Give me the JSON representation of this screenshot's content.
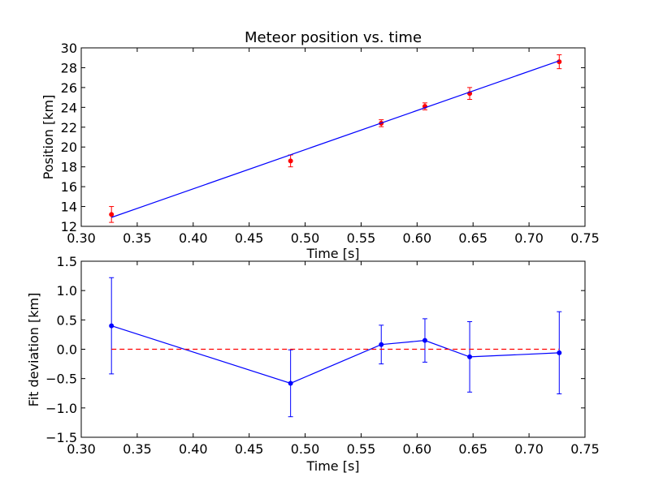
{
  "chart_data": [
    {
      "type": "scatter",
      "title": "Meteor position vs. time",
      "xlabel": "Time [s]",
      "ylabel": "Position [km]",
      "xlim": [
        0.3,
        0.75
      ],
      "ylim": [
        12,
        30
      ],
      "xticks": [
        "0.30",
        "0.35",
        "0.40",
        "0.45",
        "0.50",
        "0.55",
        "0.60",
        "0.65",
        "0.70",
        "0.75"
      ],
      "yticks": [
        "12",
        "14",
        "16",
        "18",
        "20",
        "22",
        "24",
        "26",
        "28",
        "30"
      ],
      "grid": false,
      "series": [
        {
          "kind": "points-with-errorbars",
          "color": "#ff0000",
          "errcolor": "#ff0000",
          "x": [
            0.327,
            0.487,
            0.568,
            0.607,
            0.647,
            0.727
          ],
          "y": [
            13.2,
            18.6,
            22.4,
            24.1,
            25.4,
            28.6
          ],
          "yerr": [
            0.8,
            0.6,
            0.35,
            0.35,
            0.6,
            0.7
          ]
        },
        {
          "kind": "fit-line",
          "color": "#0000ff",
          "x": [
            0.327,
            0.727
          ],
          "y": [
            12.9,
            28.7
          ]
        }
      ]
    },
    {
      "type": "line",
      "title": "",
      "xlabel": "Time [s]",
      "ylabel": "Fit deviation [km]",
      "xlim": [
        0.3,
        0.75
      ],
      "ylim": [
        -1.5,
        1.5
      ],
      "xticks": [
        "0.30",
        "0.35",
        "0.40",
        "0.45",
        "0.50",
        "0.55",
        "0.60",
        "0.65",
        "0.70",
        "0.75"
      ],
      "yticks": [
        "1.5",
        "1.0",
        "0.5",
        "0.0",
        "−0.5",
        "−1.0",
        "−1.5"
      ],
      "ytick_values": [
        1.5,
        1.0,
        0.5,
        0.0,
        -0.5,
        -1.0,
        -1.5
      ],
      "grid": false,
      "series": [
        {
          "kind": "line-with-errorbars",
          "color": "#0000ff",
          "x": [
            0.327,
            0.487,
            0.568,
            0.607,
            0.647,
            0.727
          ],
          "y": [
            0.4,
            -0.58,
            0.08,
            0.15,
            -0.13,
            -0.06
          ],
          "yerr": [
            0.82,
            0.57,
            0.33,
            0.37,
            0.6,
            0.7
          ]
        },
        {
          "kind": "reference-line",
          "style": "dashed",
          "color": "#ff0000",
          "x": [
            0.327,
            0.727
          ],
          "y": [
            0.0,
            0.0
          ]
        }
      ]
    }
  ]
}
